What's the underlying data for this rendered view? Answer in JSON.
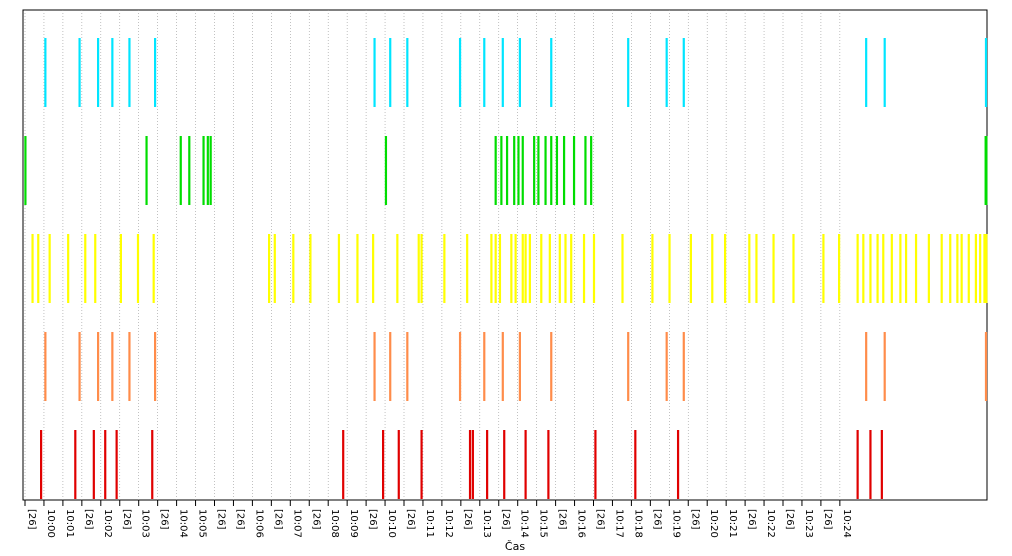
{
  "chart_data": {
    "type": "event-strip",
    "title": "",
    "xlabel": "Čas",
    "ylabel": "",
    "legend": "none",
    "grid": true,
    "x_tick_labels": [
      "[26]",
      "10:00",
      "10:01",
      "[26]",
      "10:02",
      "[26]",
      "10:03",
      "[26]",
      "10:04",
      "10:05",
      "[26]",
      "[26]",
      "10:06",
      "[26]",
      "10:07",
      "[26]",
      "10:08",
      "10:09",
      "[26]",
      "10:10",
      "[26]",
      "10:11",
      "10:12",
      "[26]",
      "10:13",
      "[26]",
      "10:14",
      "10:15",
      "[26]",
      "10:16",
      "[26]",
      "10:17",
      "10:18",
      "[26]",
      "10:19",
      "[26]",
      "10:20",
      "10:21",
      "[26]",
      "10:22",
      "[26]",
      "10:23",
      "[26]",
      "10:24"
    ],
    "x_range_min": [
      0,
      35
    ],
    "series": [
      {
        "color": "#00e5ff",
        "events_min": [
          0.75,
          1.95,
          2.6,
          3.1,
          3.7,
          4.6,
          12.3,
          12.85,
          13.45,
          15.3,
          16.15,
          16.8,
          17.4,
          18.5,
          21.2,
          22.55,
          23.15,
          29.55,
          30.2,
          36.0
        ]
      },
      {
        "color": "#00dd00",
        "events_min": [
          0.05,
          4.3,
          5.5,
          5.8,
          6.3,
          6.45,
          6.55,
          12.7,
          16.55,
          16.75,
          16.95,
          17.2,
          17.35,
          17.5,
          17.9,
          18.05,
          18.3,
          18.5,
          18.7,
          18.95,
          19.3,
          19.7,
          19.9,
          34.8,
          34.95,
          35.2,
          35.35,
          35.5,
          35.7,
          36.1,
          36.6,
          37.0,
          37.6
        ]
      },
      {
        "color": "#ffff00",
        "events_min": [
          0.3,
          0.5,
          0.9,
          1.55,
          2.15,
          2.5,
          3.4,
          4.0,
          4.55,
          8.6,
          8.8,
          9.45,
          10.05,
          11.05,
          11.7,
          12.25,
          13.1,
          13.85,
          13.95,
          14.75,
          15.55,
          16.4,
          16.55,
          16.7,
          17.1,
          17.25,
          17.5,
          17.6,
          17.75,
          18.15,
          18.45,
          18.8,
          19.0,
          19.2,
          19.65,
          20.0,
          21.0,
          22.05,
          22.65,
          23.4,
          24.15,
          24.6,
          25.45,
          25.7,
          26.3,
          27.0,
          28.05,
          28.6,
          29.25,
          29.45,
          29.7,
          29.95,
          30.15,
          30.45,
          30.75,
          30.95,
          31.3,
          31.75,
          32.2,
          32.5,
          32.75,
          32.9,
          33.15,
          33.4,
          33.55,
          33.7,
          34.15,
          34.35,
          34.5,
          34.65,
          35.1,
          36.7,
          37.0,
          37.2,
          38.55,
          40.15
        ]
      },
      {
        "color": "#ff8c4a",
        "events_min": [
          0.75,
          1.95,
          2.6,
          3.1,
          3.7,
          4.6,
          12.3,
          12.85,
          13.45,
          15.3,
          16.15,
          16.8,
          17.4,
          18.5,
          21.2,
          22.55,
          23.15,
          29.55,
          30.2,
          36.0
        ]
      },
      {
        "color": "#e00000",
        "events_min": [
          0.6,
          1.8,
          2.45,
          2.85,
          3.25,
          4.5,
          11.2,
          12.6,
          13.15,
          13.95,
          15.65,
          15.75,
          16.25,
          16.85,
          17.6,
          18.4,
          20.05,
          21.45,
          22.95,
          29.25,
          29.7,
          30.1
        ]
      }
    ]
  }
}
